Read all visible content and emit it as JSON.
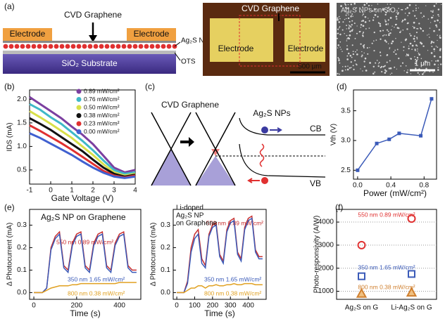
{
  "diagrams": {
    "a": {
      "label": "(a)",
      "schematic": {
        "graphene": "CVD Graphene",
        "electrode_left": "Electrode",
        "electrode_right": "Electrode",
        "nps": "Ag₂S NPs",
        "substrate": "SiO₂ Substrate",
        "ots": "OTS"
      },
      "micrograph": {
        "graphene": "CVD Graphene",
        "electrode_left": "Electrode",
        "electrode_right": "Electrode",
        "scale": "500 μm"
      },
      "sem": {
        "title": "Ag₂S NPs on SiO₂",
        "scale": "1 μm"
      }
    },
    "c": {
      "label": "(c)",
      "graphene": "CVD Graphene",
      "nps": "Ag₂S NPs",
      "cb": "CB",
      "vb": "VB"
    }
  },
  "chart_data": [
    {
      "type": "line",
      "panel_label": "(b)",
      "xlabel": "Gate Voltage (V)",
      "ylabel": "IDS (mA)",
      "x": [
        -1,
        -0.5,
        0,
        0.5,
        1,
        1.5,
        2,
        2.5,
        3,
        3.5,
        4
      ],
      "series": [
        {
          "name": "0.89 mW/cm²",
          "color": "#7b3fa0",
          "values": [
            2.05,
            1.9,
            1.75,
            1.6,
            1.42,
            1.25,
            1.05,
            0.8,
            0.55,
            0.45,
            0.5
          ]
        },
        {
          "name": "0.76 mW/cm²",
          "color": "#3fb8c8",
          "values": [
            1.9,
            1.78,
            1.62,
            1.48,
            1.3,
            1.12,
            0.92,
            0.7,
            0.5,
            0.42,
            0.45
          ]
        },
        {
          "name": "0.50 mW/cm²",
          "color": "#d8e04a",
          "values": [
            1.75,
            1.62,
            1.48,
            1.33,
            1.18,
            1.0,
            0.82,
            0.62,
            0.45,
            0.38,
            0.42
          ]
        },
        {
          "name": "0.38 mW/cm²",
          "color": "#111111",
          "values": [
            1.6,
            1.48,
            1.35,
            1.2,
            1.05,
            0.9,
            0.72,
            0.55,
            0.42,
            0.36,
            0.4
          ]
        },
        {
          "name": "0.23 mW/cm²",
          "color": "#e03030",
          "values": [
            1.45,
            1.33,
            1.2,
            1.07,
            0.93,
            0.78,
            0.63,
            0.48,
            0.38,
            0.34,
            0.38
          ]
        },
        {
          "name": "0.00 mW/cm²",
          "color": "#4060d0",
          "values": [
            1.28,
            1.18,
            1.06,
            0.94,
            0.82,
            0.68,
            0.55,
            0.44,
            0.36,
            0.33,
            0.36
          ]
        }
      ],
      "xlim": [
        -1,
        4
      ],
      "xticks": [
        -1,
        0,
        1,
        2,
        3,
        4
      ],
      "ylim": [
        0.2,
        2.2
      ],
      "yticks": [
        {
          "value": 0.5,
          "label": "0.5"
        },
        {
          "value": 1,
          "label": "1.0"
        },
        {
          "value": 1.5,
          "label": "1.5"
        },
        {
          "value": 2,
          "label": "2.0"
        }
      ],
      "legend": "upper right"
    },
    {
      "type": "line",
      "panel_label": "(d)",
      "xlabel": "Power (mW/cm²)",
      "ylabel": "Vth (V)",
      "markers": true,
      "x": [
        0,
        0.23,
        0.38,
        0.5,
        0.76,
        0.89
      ],
      "series": [
        {
          "color": "#3a5ab8",
          "values": [
            2.5,
            2.95,
            3.02,
            3.12,
            3.08,
            3.7
          ]
        }
      ],
      "xlim": [
        -0.05,
        0.95
      ],
      "xticks": [
        {
          "value": 0,
          "label": "0.0"
        },
        {
          "value": 0.4,
          "label": "0.4"
        },
        {
          "value": 0.8,
          "label": "0.8"
        }
      ],
      "ylim": [
        2.35,
        3.85
      ],
      "yticks": [
        {
          "value": 2.5,
          "label": "2.5"
        },
        {
          "value": 3,
          "label": "3.0"
        },
        {
          "value": 3.5,
          "label": "3.5"
        }
      ]
    },
    {
      "type": "line",
      "panel_label": "(e)",
      "title": "Ag₂S NP on Graphene",
      "xlabel": "Time (s)",
      "ylabel": "Δ Photocurrent (mA)",
      "x": [
        0,
        20,
        40,
        60,
        80,
        100,
        120,
        140,
        160,
        180,
        200,
        220,
        240,
        260,
        280,
        300,
        320,
        340,
        360,
        380,
        400,
        420,
        440,
        460,
        480
      ],
      "series": [
        {
          "name": "550 nm 0.89 mW/cm²",
          "color": "#c83030",
          "values": [
            0,
            0,
            0,
            0.02,
            0.2,
            0.25,
            0.27,
            0.12,
            0.1,
            0.22,
            0.26,
            0.27,
            0.12,
            0.1,
            0.22,
            0.26,
            0.27,
            0.12,
            0.1,
            0.22,
            0.26,
            0.27,
            0.12,
            0.1,
            0.1
          ]
        },
        {
          "name": "350 nm 1.65 mW/cm²",
          "color": "#3a5ab8",
          "values": [
            0,
            0,
            0,
            0.02,
            0.19,
            0.24,
            0.26,
            0.11,
            0.09,
            0.21,
            0.25,
            0.26,
            0.11,
            0.09,
            0.21,
            0.25,
            0.26,
            0.11,
            0.09,
            0.21,
            0.25,
            0.26,
            0.11,
            0.09,
            0.09
          ]
        },
        {
          "name": "800 nm 0.38 mW/cm²",
          "color": "#e0a020",
          "values": [
            0,
            0,
            0,
            0.01,
            0.02,
            0.025,
            0.03,
            0.03,
            0.03,
            0.035,
            0.035,
            0.04,
            0.04,
            0.04,
            0.04,
            0.04,
            0.04,
            0.04,
            0.04,
            0.04,
            0.045,
            0.045,
            0.045,
            0.045,
            0.045
          ]
        }
      ],
      "xlim": [
        -20,
        500
      ],
      "xticks": [
        0,
        200,
        400
      ],
      "ylim": [
        -0.03,
        0.37
      ],
      "yticks": [
        {
          "value": 0,
          "label": "0.0"
        },
        {
          "value": 0.1,
          "label": "0.1"
        },
        {
          "value": 0.2,
          "label": "0.2"
        },
        {
          "value": 0.3,
          "label": "0.3"
        }
      ]
    },
    {
      "type": "line",
      "title": [
        "Li-doped",
        "Ag₂S NP",
        "on Graphene"
      ],
      "xlabel": "Time (s)",
      "ylabel": "Δ Photocurrent (mA)",
      "x": [
        0,
        20,
        40,
        60,
        80,
        100,
        120,
        140,
        160,
        180,
        200,
        220,
        240,
        260,
        280,
        300,
        320,
        340,
        360,
        380,
        400,
        420,
        440,
        460,
        480
      ],
      "series": [
        {
          "name": "550 nm 0.89 mW/cm²",
          "color": "#c83030",
          "values": [
            0,
            0,
            0,
            0.05,
            0.2,
            0.26,
            0.28,
            0.15,
            0.12,
            0.26,
            0.3,
            0.31,
            0.17,
            0.14,
            0.28,
            0.32,
            0.33,
            0.18,
            0.15,
            0.29,
            0.33,
            0.34,
            0.19,
            0.16,
            0.16
          ]
        },
        {
          "name": "350 nm 1.65 mW/cm²",
          "color": "#3a5ab8",
          "values": [
            0,
            0,
            0,
            0.04,
            0.18,
            0.24,
            0.26,
            0.13,
            0.11,
            0.25,
            0.29,
            0.3,
            0.16,
            0.13,
            0.27,
            0.31,
            0.32,
            0.17,
            0.14,
            0.28,
            0.32,
            0.33,
            0.18,
            0.15,
            0.15
          ]
        },
        {
          "name": "800 nm 0.38 mW/cm²",
          "color": "#e0a020",
          "values": [
            0,
            0,
            0,
            0.01,
            0.02,
            0.02,
            0.03,
            0.03,
            0.02,
            0.03,
            0.03,
            0.035,
            0.03,
            0.03,
            0.035,
            0.035,
            0.04,
            0.035,
            0.035,
            0.04,
            0.04,
            0.04,
            0.035,
            0.035,
            0.035
          ]
        }
      ],
      "xlim": [
        -20,
        500
      ],
      "xticks": [
        0,
        100,
        200,
        300,
        400
      ],
      "ylim": [
        -0.03,
        0.37
      ],
      "yticks": [
        {
          "value": 0,
          "label": "0.0"
        },
        {
          "value": 0.1,
          "label": "0.1"
        },
        {
          "value": 0.2,
          "label": "0.2"
        },
        {
          "value": 0.3,
          "label": "0.3"
        }
      ]
    },
    {
      "type": "scatter",
      "panel_label": "(f)",
      "ylabel": "Photo-responsivity (A/W)",
      "categories": [
        "Ag₂S on G",
        "Li-Ag₂S on G"
      ],
      "series": [
        {
          "name": "550 nm 0.89 mW/cm²",
          "color": "#e03030",
          "marker": "circle",
          "values": [
            3000,
            4150
          ]
        },
        {
          "name": "350 nm 1.65 mW/cm²",
          "color": "#3a5ab8",
          "marker": "square",
          "values": [
            1650,
            1750
          ]
        },
        {
          "name": "800 nm 0.38 mW/cm²",
          "color": "#d08030",
          "marker": "triangle",
          "values": [
            900,
            950
          ]
        }
      ],
      "ylim": [
        650,
        4550
      ],
      "yticks": [
        1000,
        2000,
        3000,
        4000
      ],
      "grid": true
    }
  ]
}
